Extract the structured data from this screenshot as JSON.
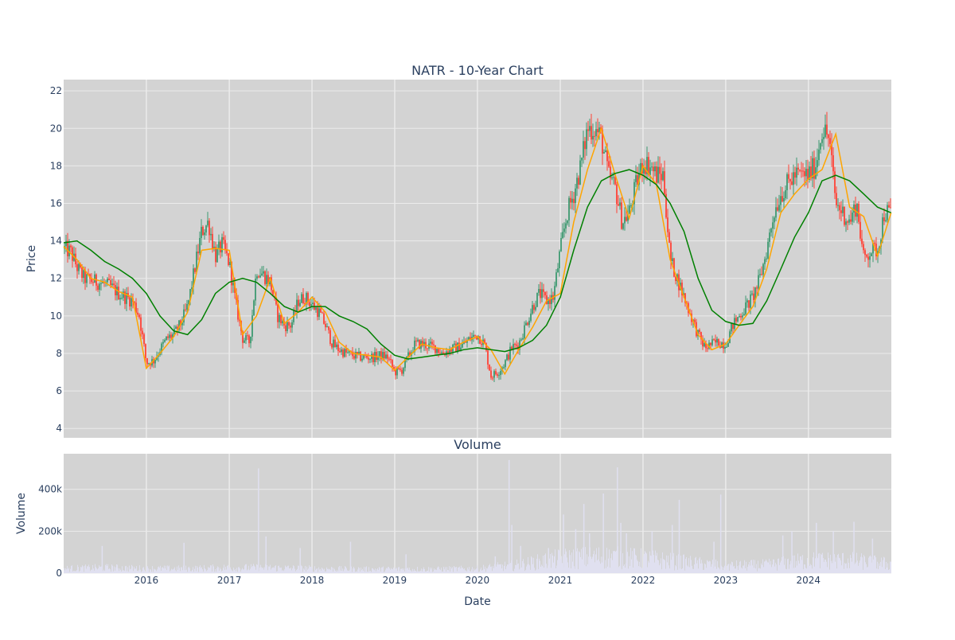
{
  "colors": {
    "plot_bg": "#d3d3d3",
    "grid": "#ebebeb",
    "text": "#2a3f5f",
    "up": "#3d9970",
    "down": "#ff4136",
    "ma_short": "#ffa500",
    "ma_long": "#008000",
    "volume_bar": "#e0e0f0"
  },
  "chart_data": [
    {
      "type": "candlestick",
      "title": "NATR - 10-Year Chart",
      "ylabel": "Price",
      "ylim": [
        3.5,
        22.6
      ],
      "xlim": [
        "2015-01-01",
        "2025-01-01"
      ],
      "y_ticks": [
        4,
        6,
        8,
        10,
        12,
        14,
        16,
        18,
        20,
        22
      ],
      "x_ticks": [
        "2016",
        "2017",
        "2018",
        "2019",
        "2020",
        "2021",
        "2022",
        "2023",
        "2024"
      ],
      "grid": true,
      "series": [
        {
          "role": "price_path",
          "x": [
            "2015-01-01",
            "2015-02-01",
            "2015-03-01",
            "2015-04-01",
            "2015-05-01",
            "2015-06-01",
            "2015-07-01",
            "2015-08-01",
            "2015-09-01",
            "2015-10-01",
            "2015-11-01",
            "2015-12-01",
            "2016-01-01",
            "2016-02-01",
            "2016-03-01",
            "2016-04-01",
            "2016-05-01",
            "2016-06-01",
            "2016-07-01",
            "2016-08-01",
            "2016-09-01",
            "2016-10-01",
            "2016-11-01",
            "2016-12-01",
            "2017-01-01",
            "2017-02-01",
            "2017-03-01",
            "2017-04-01",
            "2017-05-01",
            "2017-06-01",
            "2017-07-01",
            "2017-08-01",
            "2017-09-01",
            "2017-10-01",
            "2017-11-01",
            "2017-12-01",
            "2018-01-01",
            "2018-02-01",
            "2018-03-01",
            "2018-04-01",
            "2018-05-01",
            "2018-06-01",
            "2018-07-01",
            "2018-08-01",
            "2018-09-01",
            "2018-10-01",
            "2018-11-01",
            "2018-12-01",
            "2019-01-01",
            "2019-02-01",
            "2019-03-01",
            "2019-04-01",
            "2019-05-01",
            "2019-06-01",
            "2019-07-01",
            "2019-08-01",
            "2019-09-01",
            "2019-10-01",
            "2019-11-01",
            "2019-12-01",
            "2020-01-01",
            "2020-02-01",
            "2020-03-01",
            "2020-04-01",
            "2020-05-01",
            "2020-06-01",
            "2020-07-01",
            "2020-08-01",
            "2020-09-01",
            "2020-10-01",
            "2020-11-01",
            "2020-12-01",
            "2021-01-01",
            "2021-02-01",
            "2021-03-01",
            "2021-04-01",
            "2021-05-01",
            "2021-06-01",
            "2021-07-01",
            "2021-08-01",
            "2021-09-01",
            "2021-10-01",
            "2021-11-01",
            "2021-12-01",
            "2022-01-01",
            "2022-02-01",
            "2022-03-01",
            "2022-04-01",
            "2022-05-01",
            "2022-06-01",
            "2022-07-01",
            "2022-08-01",
            "2022-09-01",
            "2022-10-01",
            "2022-11-01",
            "2022-12-01",
            "2023-01-01",
            "2023-02-01",
            "2023-03-01",
            "2023-04-01",
            "2023-05-01",
            "2023-06-01",
            "2023-07-01",
            "2023-08-01",
            "2023-09-01",
            "2023-10-01",
            "2023-11-01",
            "2023-12-01",
            "2024-01-01",
            "2024-02-01",
            "2024-03-01",
            "2024-04-01",
            "2024-05-01",
            "2024-06-01",
            "2024-07-01",
            "2024-08-01",
            "2024-09-01",
            "2024-10-01",
            "2024-11-01",
            "2024-12-01"
          ],
          "values": [
            13.6,
            13.4,
            12.6,
            12.0,
            11.9,
            11.8,
            11.7,
            11.5,
            11.2,
            11.0,
            10.8,
            10.0,
            7.5,
            7.6,
            8.2,
            8.8,
            9.0,
            9.6,
            10.5,
            12.5,
            14.5,
            15.0,
            13.2,
            13.8,
            12.8,
            10.5,
            8.8,
            8.6,
            12.5,
            12.2,
            11.8,
            10.0,
            9.5,
            9.5,
            10.8,
            11.0,
            10.6,
            10.2,
            9.5,
            8.5,
            8.2,
            8.0,
            7.9,
            7.8,
            7.8,
            7.8,
            7.9,
            7.8,
            7.0,
            7.1,
            7.8,
            8.5,
            8.5,
            8.4,
            8.3,
            8.0,
            8.2,
            8.3,
            8.5,
            8.8,
            9.0,
            8.5,
            6.8,
            7.0,
            7.5,
            8.3,
            8.5,
            9.5,
            10.5,
            11.2,
            10.8,
            11.0,
            13.5,
            15.5,
            16.5,
            18.0,
            20.0,
            20.0,
            19.5,
            17.5,
            16.8,
            15.0,
            15.5,
            17.0,
            18.2,
            18.0,
            17.5,
            17.5,
            13.0,
            12.0,
            11.0,
            10.0,
            9.0,
            8.3,
            8.5,
            8.6,
            8.5,
            9.5,
            10.0,
            10.5,
            11.0,
            12.0,
            13.5,
            15.5,
            16.5,
            17.0,
            17.5,
            17.5,
            17.5,
            18.0,
            20.0,
            19.5,
            16.0,
            15.5,
            15.0,
            16.0,
            13.0,
            13.5,
            13.5,
            15.5
          ]
        },
        {
          "name": "",
          "role": "ma_short",
          "color": "#ffa500",
          "x": [
            "2015-01-01",
            "2015-03-01",
            "2015-05-01",
            "2015-07-01",
            "2015-09-01",
            "2015-11-01",
            "2016-01-01",
            "2016-03-01",
            "2016-05-01",
            "2016-07-01",
            "2016-09-01",
            "2016-11-01",
            "2017-01-01",
            "2017-03-01",
            "2017-05-01",
            "2017-07-01",
            "2017-09-01",
            "2017-11-01",
            "2018-01-01",
            "2018-03-01",
            "2018-05-01",
            "2018-07-01",
            "2018-09-01",
            "2018-11-01",
            "2019-01-01",
            "2019-03-01",
            "2019-05-01",
            "2019-07-01",
            "2019-09-01",
            "2019-11-01",
            "2020-01-01",
            "2020-03-01",
            "2020-05-01",
            "2020-07-01",
            "2020-09-01",
            "2020-11-01",
            "2021-01-01",
            "2021-03-01",
            "2021-05-01",
            "2021-07-01",
            "2021-09-01",
            "2021-11-01",
            "2022-01-01",
            "2022-03-01",
            "2022-05-01",
            "2022-07-01",
            "2022-09-01",
            "2022-11-01",
            "2023-01-01",
            "2023-03-01",
            "2023-05-01",
            "2023-07-01",
            "2023-09-01",
            "2023-11-01",
            "2024-01-01",
            "2024-03-01",
            "2024-05-01",
            "2024-07-01",
            "2024-09-01",
            "2024-11-01",
            "2024-12-31"
          ],
          "values": [
            13.7,
            13.0,
            12.0,
            11.8,
            11.3,
            11.0,
            7.2,
            8.0,
            8.9,
            10.2,
            13.5,
            13.6,
            13.5,
            9.0,
            10.0,
            12.0,
            9.6,
            10.2,
            11.0,
            10.2,
            8.6,
            8.0,
            7.9,
            7.8,
            7.1,
            7.8,
            8.5,
            8.3,
            8.2,
            8.6,
            8.9,
            8.2,
            6.9,
            8.2,
            9.4,
            10.8,
            11.2,
            15.0,
            17.8,
            20.0,
            17.5,
            15.2,
            18.0,
            17.0,
            13.0,
            11.0,
            9.0,
            8.2,
            8.5,
            9.5,
            10.5,
            12.5,
            15.5,
            16.5,
            17.3,
            17.8,
            19.7,
            15.8,
            15.3,
            13.2,
            15.5
          ]
        },
        {
          "name": "",
          "role": "ma_long",
          "color": "#008000",
          "x": [
            "2015-01-01",
            "2015-03-01",
            "2015-05-01",
            "2015-07-01",
            "2015-09-01",
            "2015-11-01",
            "2016-01-01",
            "2016-03-01",
            "2016-05-01",
            "2016-07-01",
            "2016-09-01",
            "2016-11-01",
            "2017-01-01",
            "2017-03-01",
            "2017-05-01",
            "2017-07-01",
            "2017-09-01",
            "2017-11-01",
            "2018-01-01",
            "2018-03-01",
            "2018-05-01",
            "2018-07-01",
            "2018-09-01",
            "2018-11-01",
            "2019-01-01",
            "2019-03-01",
            "2019-05-01",
            "2019-07-01",
            "2019-09-01",
            "2019-11-01",
            "2020-01-01",
            "2020-03-01",
            "2020-05-01",
            "2020-07-01",
            "2020-09-01",
            "2020-11-01",
            "2021-01-01",
            "2021-03-01",
            "2021-05-01",
            "2021-07-01",
            "2021-09-01",
            "2021-11-01",
            "2022-01-01",
            "2022-03-01",
            "2022-05-01",
            "2022-07-01",
            "2022-09-01",
            "2022-11-01",
            "2023-01-01",
            "2023-03-01",
            "2023-05-01",
            "2023-07-01",
            "2023-09-01",
            "2023-11-01",
            "2024-01-01",
            "2024-03-01",
            "2024-05-01",
            "2024-07-01",
            "2024-09-01",
            "2024-11-01",
            "2024-12-31"
          ],
          "values": [
            13.9,
            14.0,
            13.5,
            12.9,
            12.5,
            12.0,
            11.2,
            10.0,
            9.2,
            9.0,
            9.8,
            11.2,
            11.8,
            12.0,
            11.8,
            11.2,
            10.5,
            10.2,
            10.5,
            10.5,
            10.0,
            9.7,
            9.3,
            8.5,
            7.9,
            7.7,
            7.8,
            7.9,
            8.0,
            8.2,
            8.3,
            8.2,
            8.1,
            8.3,
            8.7,
            9.5,
            11.0,
            13.5,
            15.8,
            17.2,
            17.6,
            17.8,
            17.5,
            17.0,
            16.0,
            14.5,
            12.0,
            10.3,
            9.7,
            9.5,
            9.6,
            10.8,
            12.5,
            14.2,
            15.5,
            17.2,
            17.5,
            17.2,
            16.5,
            15.8,
            15.5
          ]
        }
      ]
    },
    {
      "type": "bar",
      "title": "Volume",
      "xlabel": "Date",
      "ylabel": "Volume",
      "ylim": [
        0,
        570000
      ],
      "xlim": [
        "2015-01-01",
        "2025-01-01"
      ],
      "y_ticks": [
        0,
        200000,
        400000
      ],
      "y_tick_labels": [
        "0",
        "200k",
        "400k"
      ],
      "x_ticks": [
        "2016",
        "2017",
        "2018",
        "2019",
        "2020",
        "2021",
        "2022",
        "2023",
        "2024"
      ],
      "grid": true,
      "series": [
        {
          "role": "volume_baseline",
          "x": [
            "2015-01-01",
            "2015-07-01",
            "2016-01-01",
            "2016-07-01",
            "2017-01-01",
            "2017-07-01",
            "2018-01-01",
            "2018-07-01",
            "2019-01-01",
            "2019-07-01",
            "2020-01-01",
            "2020-07-01",
            "2021-01-01",
            "2021-07-01",
            "2022-01-01",
            "2022-07-01",
            "2023-01-01",
            "2023-07-01",
            "2024-01-01",
            "2024-07-01",
            "2024-12-31"
          ],
          "values": [
            25000,
            30000,
            25000,
            25000,
            30000,
            30000,
            25000,
            22000,
            22000,
            22000,
            25000,
            45000,
            80000,
            90000,
            80000,
            60000,
            40000,
            45000,
            70000,
            70000,
            50000
          ]
        },
        {
          "role": "volume_spikes",
          "x": [
            "2015-06-20",
            "2016-06-15",
            "2017-05-10",
            "2017-06-12",
            "2017-11-10",
            "2018-06-20",
            "2019-02-20",
            "2020-03-20",
            "2020-05-20",
            "2020-06-01",
            "2020-07-10",
            "2020-11-10",
            "2021-01-15",
            "2021-03-10",
            "2021-04-15",
            "2021-05-10",
            "2021-07-10",
            "2021-09-10",
            "2021-09-25",
            "2021-10-20",
            "2022-02-10",
            "2022-05-10",
            "2022-06-10",
            "2022-11-10",
            "2022-12-10",
            "2023-09-10",
            "2023-10-20",
            "2024-02-05",
            "2024-04-20",
            "2024-07-20",
            "2024-10-10"
          ],
          "values": [
            130000,
            145000,
            500000,
            175000,
            120000,
            150000,
            90000,
            80000,
            540000,
            230000,
            130000,
            120000,
            280000,
            210000,
            330000,
            190000,
            380000,
            505000,
            240000,
            190000,
            200000,
            230000,
            350000,
            150000,
            375000,
            180000,
            200000,
            240000,
            200000,
            245000,
            165000
          ]
        }
      ]
    }
  ]
}
